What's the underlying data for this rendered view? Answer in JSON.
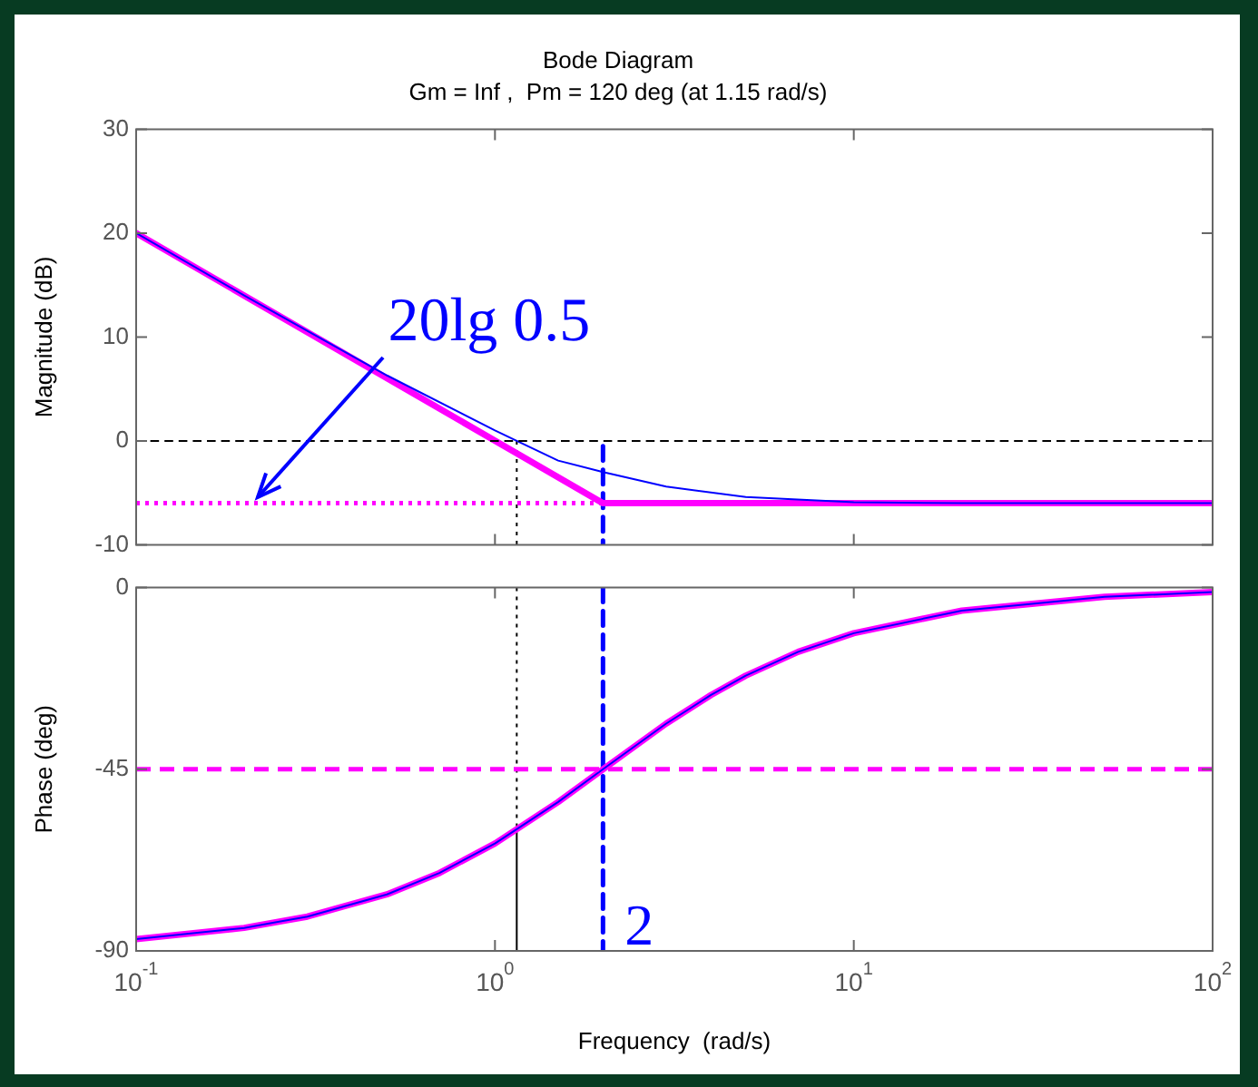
{
  "chart_data": [
    {
      "type": "line",
      "title": "Bode Diagram",
      "subtitle": "Gm = Inf ,  Pm = 120 deg (at 1.15 rad/s)",
      "ylabel": "Magnitude (dB)",
      "log": "x",
      "xlim": [
        0.1,
        100
      ],
      "xticks": [
        {
          "value": 0.1,
          "label": null
        },
        {
          "value": 1,
          "label": null
        },
        {
          "value": 10,
          "label": null
        },
        {
          "value": 100,
          "label": null
        }
      ],
      "ylim": [
        -10,
        30
      ],
      "yticks": [
        -10,
        0,
        10,
        20,
        30
      ],
      "tick_labels": "y",
      "grid": false,
      "legend": false,
      "marker": "none",
      "series": [
        {
          "color": "#0000ff",
          "x": [
            0.1,
            0.2,
            0.5,
            1,
            1.15,
            1.5,
            2,
            3,
            5,
            10,
            20,
            100
          ],
          "values": [
            20,
            14,
            6.3,
            1,
            0,
            -1.9,
            -3,
            -4.4,
            -5.4,
            -5.9,
            -6,
            -6
          ]
        },
        {
          "color": "#ff00ff",
          "x": [
            0.1,
            2,
            100
          ],
          "values": [
            20,
            -6,
            -6
          ]
        },
        {
          "color": "#ff00ff",
          "x": [
            0.1,
            2
          ],
          "values": [
            -6,
            -6
          ],
          "line_style": "dotted"
        },
        {
          "color": "#000000",
          "x": [
            1.15,
            1.15
          ],
          "values": [
            0,
            -10
          ],
          "line_style": "dotted"
        },
        {
          "color": "#0000ff",
          "x": [
            2,
            2
          ],
          "values": [
            -0.5,
            -10
          ],
          "line_style": "dashed"
        }
      ],
      "ref_lines": [
        {
          "axis": "y",
          "value": 0,
          "color": "#000000",
          "line_style": "dashed"
        }
      ],
      "annotations": [
        {
          "text": "20lg 0.5",
          "x": 0.21,
          "y": -6
        }
      ]
    },
    {
      "type": "line",
      "xlabel": "Frequency  (rad/s)",
      "ylabel": "Phase (deg)",
      "log": "x",
      "xlim": [
        0.1,
        100
      ],
      "xticks": [
        {
          "value": 0.1,
          "label": "10$^{-1}$"
        },
        {
          "value": 1,
          "label": "10$^{0}$"
        },
        {
          "value": 10,
          "label": "10$^{1}$"
        },
        {
          "value": 100,
          "label": "10$^{2}$"
        }
      ],
      "ylim": [
        -90,
        0
      ],
      "yticks": [
        -90,
        -45,
        0
      ],
      "grid": false,
      "legend": false,
      "marker": "none",
      "series": [
        {
          "color": "#0000ff",
          "x": [
            0.1,
            0.2,
            0.3,
            0.5,
            0.7,
            1,
            1.5,
            2,
            3,
            4,
            5,
            7,
            10,
            20,
            50,
            100
          ],
          "values": [
            -87.1,
            -84.3,
            -81.5,
            -76,
            -70.7,
            -63.4,
            -53.1,
            -45,
            -33.7,
            -26.6,
            -21.8,
            -15.9,
            -11.3,
            -5.7,
            -2.3,
            -1.1
          ]
        },
        {
          "color": "#ff00ff",
          "x": [
            0.1,
            0.2,
            0.3,
            0.5,
            0.7,
            1,
            1.5,
            2,
            3,
            4,
            5,
            7,
            10,
            20,
            50,
            100
          ],
          "values": [
            -87.1,
            -84.3,
            -81.5,
            -76,
            -70.7,
            -63.4,
            -53.1,
            -45,
            -33.7,
            -26.6,
            -21.8,
            -15.9,
            -11.3,
            -5.7,
            -2.3,
            -1.1
          ]
        },
        {
          "color": "#000000",
          "x": [
            1.15,
            1.15
          ],
          "values": [
            0,
            -60
          ],
          "line_style": "dotted"
        },
        {
          "color": "#000000",
          "x": [
            1.15,
            1.15
          ],
          "values": [
            -60,
            -90
          ]
        },
        {
          "color": "#0000ff",
          "x": [
            2,
            2
          ],
          "values": [
            0,
            -90
          ],
          "line_style": "dashed"
        }
      ],
      "ref_lines": [
        {
          "axis": "y",
          "value": -45,
          "color": "#ff00ff",
          "line_style": "dashed"
        }
      ],
      "annotations": [
        {
          "text": "2",
          "x": 2,
          "y": -84
        }
      ]
    }
  ]
}
